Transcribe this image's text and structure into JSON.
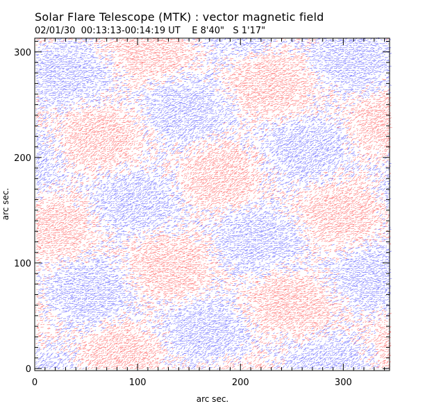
{
  "header": {
    "title": "Solar Flare Telescope (MTK) : vector magnetic field",
    "date": "02/01/30",
    "time_range": "00:13:13-00:14:19 UT",
    "position_ew": "E 8'40\"",
    "position_ns": "S 1'17\""
  },
  "chart_data": {
    "type": "vector-field",
    "xlabel": "arc sec.",
    "ylabel": "arc sec.",
    "xlim": [
      0,
      345
    ],
    "ylim": [
      -2,
      313
    ],
    "x_ticks": [
      0,
      100,
      200,
      300
    ],
    "y_ticks": [
      0,
      100,
      200,
      300
    ],
    "grid": false,
    "colors": {
      "positive_polarity": "#ff2a2a",
      "negative_polarity": "#2a2aff",
      "frame": "#000000"
    }
  }
}
